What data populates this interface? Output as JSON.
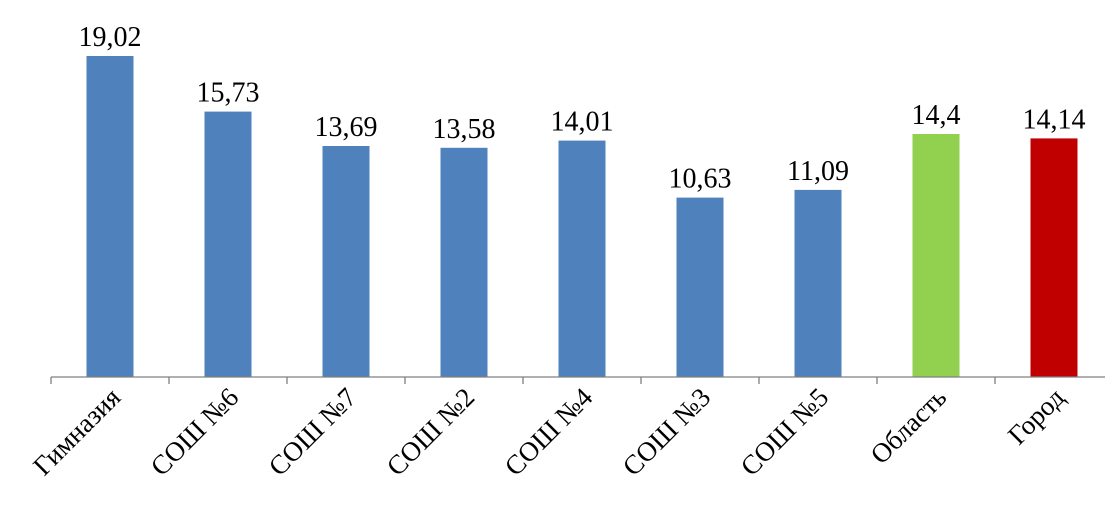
{
  "chart_data": {
    "type": "bar",
    "title": "",
    "xlabel": "",
    "ylabel": "",
    "ylim": [
      0,
      20
    ],
    "grid": false,
    "legend": "none",
    "categories": [
      "Гимназия",
      "СОШ №6",
      "СОШ №7",
      "СОШ №2",
      "СОШ №4",
      "СОШ №3",
      "СОШ №5",
      "Область",
      "Город"
    ],
    "values": [
      19.02,
      15.73,
      13.69,
      13.58,
      14.01,
      10.63,
      11.09,
      14.4,
      14.14
    ],
    "data_labels": [
      "19,02",
      "15,73",
      "13,69",
      "13,58",
      "14,01",
      "10,63",
      "11,09",
      "14,4",
      "14,14"
    ],
    "colors": [
      "#4f81bd",
      "#4f81bd",
      "#4f81bd",
      "#4f81bd",
      "#4f81bd",
      "#4f81bd",
      "#4f81bd",
      "#92d050",
      "#c00000"
    ],
    "axis_color": "#808080"
  }
}
